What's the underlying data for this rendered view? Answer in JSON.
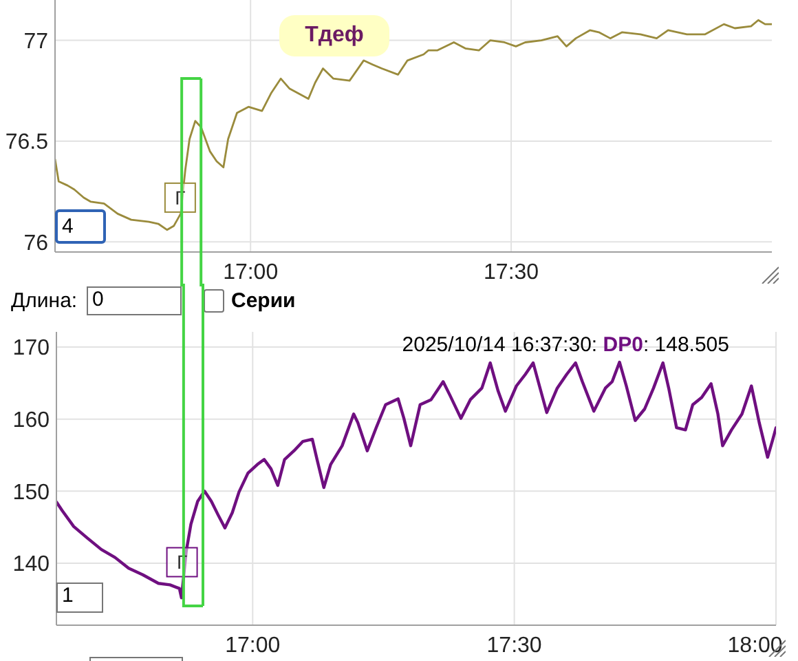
{
  "chart_data": [
    {
      "type": "line",
      "title": "Тдеф",
      "x": [
        16.625,
        16.632,
        16.649,
        16.662,
        16.68,
        16.693,
        16.719,
        16.745,
        16.771,
        16.805,
        16.823,
        16.84,
        16.853,
        16.866,
        16.875,
        16.883,
        16.894,
        16.905,
        16.922,
        16.935,
        16.948,
        16.957,
        16.974,
        16.996,
        17.022,
        17.04,
        17.058,
        17.075,
        17.111,
        17.124,
        17.139,
        17.159,
        17.19,
        17.217,
        17.234,
        17.252,
        17.283,
        17.301,
        17.332,
        17.341,
        17.358,
        17.39,
        17.412,
        17.438,
        17.46,
        17.487,
        17.509,
        17.527,
        17.558,
        17.589,
        17.606,
        17.624,
        17.651,
        17.668,
        17.69,
        17.713,
        17.748,
        17.779,
        17.801,
        17.837,
        17.872,
        17.908,
        17.929,
        17.96,
        17.974,
        17.987,
        18.0
      ],
      "series": [
        {
          "color": "#9a8b3c",
          "values": [
            76.41,
            76.3,
            76.28,
            76.26,
            76.22,
            76.2,
            76.19,
            76.14,
            76.11,
            76.1,
            76.09,
            76.06,
            76.08,
            76.14,
            76.36,
            76.51,
            76.6,
            76.57,
            76.45,
            76.4,
            76.37,
            76.51,
            76.64,
            76.67,
            76.65,
            76.74,
            76.81,
            76.76,
            76.71,
            76.79,
            76.86,
            76.81,
            76.8,
            76.9,
            76.88,
            76.86,
            76.83,
            76.9,
            76.93,
            76.95,
            76.95,
            76.99,
            76.96,
            76.95,
            77.0,
            76.99,
            76.97,
            76.99,
            77.0,
            77.02,
            76.97,
            77.01,
            77.05,
            77.04,
            77.01,
            77.04,
            77.03,
            77.01,
            77.05,
            77.03,
            77.03,
            77.08,
            77.06,
            77.07,
            77.1,
            77.08,
            77.08
          ]
        }
      ],
      "xlim": [
        16.625,
        18
      ],
      "xticks": [
        {
          "value": 17,
          "label": "17:00"
        },
        {
          "value": 17.5,
          "label": "17:30"
        }
      ],
      "ylim": [
        75.95,
        77.2
      ],
      "yticks": [
        76,
        76.5,
        77
      ],
      "grid": true,
      "ref_lines": [
        {
          "axis": "x",
          "value": 16.868,
          "color": "#44d444"
        },
        {
          "axis": "x",
          "value": 16.905,
          "color": "#44d444"
        }
      ],
      "annotations": [
        {
          "text": "Г",
          "x": 16.865,
          "y": 76.1
        },
        "4"
      ]
    },
    {
      "type": "line",
      "x": [
        16.625,
        16.636,
        16.658,
        16.684,
        16.711,
        16.737,
        16.763,
        16.79,
        16.82,
        16.842,
        16.86,
        16.864,
        16.873,
        16.882,
        16.895,
        16.908,
        16.921,
        16.934,
        16.947,
        16.961,
        16.974,
        16.991,
        17.009,
        17.022,
        17.035,
        17.048,
        17.061,
        17.079,
        17.096,
        17.114,
        17.123,
        17.136,
        17.149,
        17.171,
        17.193,
        17.201,
        17.219,
        17.236,
        17.254,
        17.278,
        17.289,
        17.302,
        17.32,
        17.341,
        17.364,
        17.377,
        17.398,
        17.416,
        17.438,
        17.454,
        17.469,
        17.483,
        17.504,
        17.521,
        17.536,
        17.548,
        17.562,
        17.582,
        17.6,
        17.617,
        17.63,
        17.652,
        17.674,
        17.687,
        17.701,
        17.714,
        17.731,
        17.749,
        17.766,
        17.784,
        17.795,
        17.81,
        17.827,
        17.841,
        17.858,
        17.876,
        17.889,
        17.898,
        17.915,
        17.935,
        17.953,
        17.968,
        17.984,
        17.994,
        18.0
      ],
      "series": [
        {
          "name": "DP0",
          "color": "#6f0f80",
          "values": [
            148.505,
            147.3,
            145.1,
            143.5,
            141.9,
            140.8,
            139.3,
            138.4,
            137.2,
            137.0,
            136.5,
            135.2,
            141.6,
            145.4,
            148.6,
            150.0,
            148.6,
            146.7,
            144.9,
            147.0,
            149.9,
            152.5,
            153.7,
            154.4,
            153.1,
            150.8,
            154.4,
            155.6,
            156.9,
            157.2,
            154.4,
            150.5,
            153.7,
            156.3,
            160.7,
            159.5,
            155.6,
            158.8,
            162.0,
            162.8,
            160.1,
            156.3,
            162.0,
            162.7,
            165.2,
            163.3,
            160.1,
            162.7,
            164.3,
            167.8,
            163.9,
            161.1,
            164.6,
            166.2,
            167.8,
            164.6,
            160.9,
            164.3,
            166.2,
            167.8,
            165.2,
            161.1,
            164.3,
            165.2,
            167.9,
            164.6,
            159.8,
            161.4,
            164.3,
            167.8,
            164.3,
            158.8,
            158.5,
            162.0,
            163.0,
            164.9,
            160.7,
            156.3,
            158.5,
            160.7,
            164.6,
            159.5,
            154.7,
            157.2,
            158.8
          ]
        }
      ],
      "xlim": [
        16.625,
        18
      ],
      "xticks": [
        {
          "value": 17,
          "label": "17:00"
        },
        {
          "value": 17.5,
          "label": "17:30"
        },
        {
          "value": 18,
          "label": "18:00"
        }
      ],
      "ylim": [
        131.4,
        172.1
      ],
      "yticks": [
        140,
        150,
        160,
        170
      ],
      "grid": true,
      "legend": "top right",
      "legend_title": "2025/10/14 16:37:30:",
      "ref_lines": [
        {
          "axis": "x",
          "value": 16.868,
          "color": "#44d444"
        },
        {
          "axis": "x",
          "value": 16.905,
          "color": "#44d444"
        }
      ],
      "annotations": [
        "Длина:",
        "0",
        "Серии",
        ": 148.505",
        {
          "text": "Г",
          "x": 16.865,
          "y": 136.8
        },
        "1"
      ]
    }
  ]
}
